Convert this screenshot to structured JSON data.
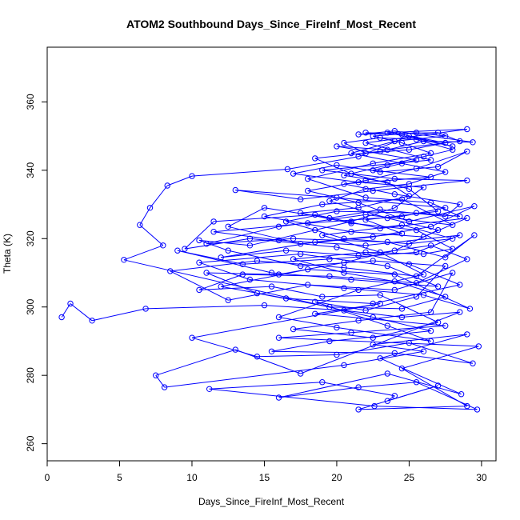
{
  "chart_data": {
    "type": "line",
    "title": "ATOM2 Southbound Days_Since_FireInf_Most_Recent",
    "xlabel": "Days_Since_FireInf_Most_Recent",
    "ylabel": "Theta (K)",
    "xlim": [
      0,
      31
    ],
    "ylim": [
      255,
      376
    ],
    "xticks": [
      0,
      5,
      10,
      15,
      20,
      25,
      30
    ],
    "yticks": [
      260,
      280,
      300,
      320,
      340,
      360
    ],
    "grid": false,
    "legend": "none",
    "series": [
      {
        "color": "#0000ff",
        "markers": "open-circle",
        "points": [
          [
            1.0,
            297
          ],
          [
            1.6,
            301
          ],
          [
            3.1,
            296
          ],
          [
            6.8,
            299.5
          ],
          [
            15.0,
            300.5
          ],
          [
            20.5,
            299
          ],
          [
            24.5,
            297
          ],
          [
            28.5,
            298.5
          ],
          [
            17.5,
            280.5
          ],
          [
            13.0,
            287.5
          ],
          [
            7.5,
            280
          ],
          [
            8.1,
            276.5
          ],
          [
            20.5,
            283
          ],
          [
            26.0,
            287
          ],
          [
            22.5,
            289
          ],
          [
            29.0,
            292
          ],
          [
            23.0,
            285
          ],
          [
            28.6,
            274.5
          ],
          [
            23.5,
            280.5
          ],
          [
            16.0,
            273.5
          ],
          [
            21.5,
            276.5
          ],
          [
            25.5,
            278
          ],
          [
            29.7,
            270
          ],
          [
            22.6,
            271
          ],
          [
            11.2,
            276
          ],
          [
            19.0,
            278
          ],
          [
            24.0,
            274
          ],
          [
            23.5,
            272.5
          ],
          [
            27.0,
            277
          ],
          [
            21.5,
            270
          ],
          [
            29.0,
            271
          ],
          [
            24.5,
            282
          ],
          [
            29.8,
            288.5
          ],
          [
            16.0,
            291
          ],
          [
            21.0,
            292.5
          ],
          [
            27.5,
            294.5
          ],
          [
            18.5,
            298
          ],
          [
            23.0,
            301
          ],
          [
            10.0,
            291
          ],
          [
            14.5,
            285.5
          ],
          [
            20.0,
            286
          ],
          [
            25.0,
            289.5
          ],
          [
            29.4,
            283.5
          ],
          [
            24.0,
            286.5
          ],
          [
            15.5,
            287
          ],
          [
            19.5,
            290
          ],
          [
            26.5,
            293
          ],
          [
            22.5,
            297
          ],
          [
            5.3,
            313.8
          ],
          [
            8.0,
            318
          ],
          [
            6.4,
            324
          ],
          [
            7.1,
            329
          ],
          [
            8.3,
            335.5
          ],
          [
            10.0,
            338.3
          ],
          [
            16.6,
            340.3
          ],
          [
            21.5,
            344
          ],
          [
            25.0,
            350
          ],
          [
            28.0,
            347
          ],
          [
            23.5,
            351
          ],
          [
            29.0,
            352
          ],
          [
            22.0,
            348
          ],
          [
            26.5,
            343
          ],
          [
            19.0,
            340
          ],
          [
            24.0,
            337.5
          ],
          [
            29.0,
            337
          ],
          [
            22.5,
            334
          ],
          [
            17.5,
            331.5
          ],
          [
            13.0,
            334.2
          ],
          [
            20.0,
            332
          ],
          [
            27.5,
            329
          ],
          [
            24.5,
            326.5
          ],
          [
            18.0,
            324.5
          ],
          [
            11.5,
            322
          ],
          [
            16.0,
            319.5
          ],
          [
            22.0,
            318
          ],
          [
            28.5,
            321
          ],
          [
            25.5,
            316
          ],
          [
            19.5,
            314
          ],
          [
            13.5,
            312.5
          ],
          [
            9.0,
            316.5
          ],
          [
            15.5,
            310
          ],
          [
            21.0,
            308
          ],
          [
            27.0,
            306
          ],
          [
            23.5,
            312
          ],
          [
            17.5,
            315.5
          ],
          [
            10.5,
            313
          ],
          [
            14.0,
            308
          ],
          [
            20.5,
            305.5
          ],
          [
            26.0,
            303.5
          ],
          [
            29.2,
            299.5
          ],
          [
            24.0,
            309.5
          ],
          [
            18.0,
            311
          ],
          [
            12.0,
            306
          ],
          [
            16.5,
            302.5
          ],
          [
            22.5,
            301
          ],
          [
            28.5,
            306.5
          ],
          [
            25.0,
            312.5
          ],
          [
            20.0,
            317.5
          ],
          [
            14.0,
            320
          ],
          [
            9.5,
            317
          ],
          [
            11.5,
            325
          ],
          [
            18.5,
            327
          ],
          [
            23.0,
            323
          ],
          [
            29.0,
            326
          ],
          [
            26.0,
            320.5
          ],
          [
            21.0,
            322
          ],
          [
            15.0,
            326.5
          ],
          [
            19.0,
            330
          ],
          [
            24.5,
            331.5
          ],
          [
            28.0,
            324
          ],
          [
            22.0,
            327
          ],
          [
            16.0,
            323.5
          ],
          [
            11.0,
            318.5
          ],
          [
            17.0,
            320
          ],
          [
            23.5,
            319
          ],
          [
            27.5,
            314.5
          ],
          [
            29.5,
            321
          ],
          [
            25.5,
            309
          ],
          [
            20.5,
            311.5
          ],
          [
            14.5,
            313.5
          ],
          [
            8.5,
            310.5
          ],
          [
            12.5,
            302
          ],
          [
            18.0,
            306.5
          ],
          [
            24.0,
            305
          ],
          [
            28.0,
            310
          ],
          [
            26.5,
            298.5
          ],
          [
            21.5,
            296
          ],
          [
            17.0,
            293.5
          ],
          [
            22.5,
            291
          ],
          [
            27.0,
            295.5
          ],
          [
            23.0,
            303.5
          ],
          [
            19.0,
            303
          ],
          [
            15.5,
            306
          ],
          [
            10.5,
            305
          ],
          [
            13.5,
            309.5
          ],
          [
            19.5,
            309
          ],
          [
            25.5,
            307
          ],
          [
            29.0,
            314
          ],
          [
            26.5,
            318
          ],
          [
            21.5,
            315
          ],
          [
            16.5,
            316.5
          ],
          [
            12.0,
            314.5
          ],
          [
            18.5,
            319
          ],
          [
            24.5,
            321.5
          ],
          [
            22.0,
            325.5
          ],
          [
            27.0,
            328
          ],
          [
            25.0,
            334.5
          ],
          [
            21.0,
            339
          ],
          [
            18.5,
            343.5
          ],
          [
            23.0,
            345.5
          ],
          [
            26.0,
            348.5
          ],
          [
            29.4,
            348.2
          ],
          [
            24.0,
            351.5
          ],
          [
            21.5,
            350.5
          ],
          [
            27.0,
            351
          ],
          [
            28.5,
            348.5
          ],
          [
            23.5,
            346
          ],
          [
            20.0,
            347
          ],
          [
            25.5,
            343
          ],
          [
            22.5,
            340
          ],
          [
            26.5,
            338
          ],
          [
            20.5,
            336
          ],
          [
            24.0,
            333
          ],
          [
            28.5,
            330
          ],
          [
            27.5,
            326.5
          ],
          [
            23.0,
            328.5
          ],
          [
            19.5,
            326
          ],
          [
            15.0,
            329
          ],
          [
            12.5,
            323.5
          ],
          [
            17.5,
            318.5
          ],
          [
            22.5,
            320.5
          ],
          [
            26.5,
            323.5
          ],
          [
            29.5,
            329.5
          ],
          [
            25.0,
            325
          ],
          [
            21.5,
            330.5
          ],
          [
            18.0,
            334
          ],
          [
            22.0,
            337
          ],
          [
            25.5,
            340.5
          ],
          [
            29.0,
            345.5
          ],
          [
            27.0,
            341
          ],
          [
            23.0,
            339.5
          ],
          [
            20.0,
            341.5
          ],
          [
            17.0,
            339
          ],
          [
            21.5,
            336.5
          ],
          [
            26.0,
            335
          ],
          [
            24.0,
            329
          ],
          [
            21.0,
            325
          ],
          [
            18.5,
            322.5
          ],
          [
            14.0,
            318
          ],
          [
            10.5,
            319.5
          ],
          [
            12.5,
            316.5
          ],
          [
            17.5,
            312
          ],
          [
            22.5,
            313.5
          ],
          [
            27.5,
            312
          ],
          [
            25.5,
            303
          ],
          [
            22.0,
            299
          ],
          [
            18.5,
            301.5
          ],
          [
            23.5,
            294.5
          ],
          [
            26.5,
            290
          ],
          [
            20.0,
            294
          ],
          [
            16.0,
            297
          ],
          [
            21.5,
            305
          ],
          [
            26.0,
            309.5
          ],
          [
            23.0,
            316
          ],
          [
            19.0,
            321
          ],
          [
            24.5,
            324
          ],
          [
            28.0,
            320
          ],
          [
            25.0,
            318.5
          ],
          [
            20.5,
            320
          ],
          [
            16.5,
            325
          ],
          [
            20.0,
            328
          ],
          [
            25.5,
            327.5
          ],
          [
            28.5,
            326.5
          ],
          [
            26.5,
            330.5
          ],
          [
            22.0,
            332
          ],
          [
            18.0,
            337.5
          ],
          [
            22.5,
            342
          ],
          [
            26.5,
            345
          ],
          [
            24.5,
            348
          ],
          [
            22.5,
            350
          ],
          [
            25.5,
            351
          ],
          [
            27.5,
            350
          ],
          [
            24.0,
            348.5
          ],
          [
            21.0,
            345
          ],
          [
            24.5,
            342
          ],
          [
            27.5,
            339.5
          ],
          [
            25.0,
            336
          ],
          [
            22.0,
            334.5
          ],
          [
            19.5,
            331
          ],
          [
            23.5,
            326
          ],
          [
            27.0,
            322.5
          ],
          [
            24.0,
            316.5
          ],
          [
            20.5,
            313
          ],
          [
            16.0,
            309.5
          ],
          [
            11.0,
            310
          ],
          [
            14.5,
            304
          ],
          [
            19.5,
            300
          ],
          [
            24.5,
            299.5
          ],
          [
            27.5,
            303
          ],
          [
            24.0,
            307.5
          ],
          [
            20.5,
            310
          ],
          [
            17.0,
            314
          ],
          [
            22.0,
            316
          ],
          [
            26.0,
            315.5
          ],
          [
            28.0,
            317
          ],
          [
            25.5,
            322.5
          ],
          [
            21.0,
            324.5
          ],
          [
            17.5,
            327.5
          ],
          [
            21.5,
            329
          ],
          [
            25.0,
            332.5
          ],
          [
            23.5,
            336.5
          ],
          [
            20.5,
            338.5
          ],
          [
            23.5,
            341.5
          ],
          [
            26.0,
            344
          ],
          [
            28.0,
            346
          ],
          [
            25.5,
            349
          ],
          [
            23.0,
            349.5
          ],
          [
            20.5,
            348
          ],
          [
            22.0,
            345
          ],
          [
            25.0,
            346
          ],
          [
            27.5,
            348
          ],
          [
            24.5,
            350.5
          ],
          [
            22.0,
            351
          ]
        ]
      }
    ]
  }
}
